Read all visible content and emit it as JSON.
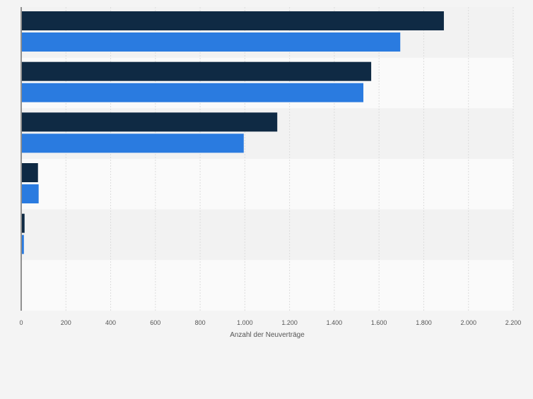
{
  "chart_data": {
    "type": "bar",
    "orientation": "horizontal",
    "categories": [
      "",
      "",
      "",
      "",
      "",
      ""
    ],
    "series": [
      {
        "color": "#0f2a44",
        "values": [
          1890,
          1565,
          1145,
          75,
          15,
          0
        ]
      },
      {
        "color": "#2a7be0",
        "values": [
          1695,
          1530,
          995,
          78,
          12,
          0
        ]
      }
    ],
    "xlabel": "Anzahl der Neuverträge",
    "xlim": [
      0,
      2200
    ],
    "x_ticks": [
      0,
      200,
      400,
      600,
      800,
      1000,
      1200,
      1400,
      1600,
      1800,
      2000,
      2200
    ],
    "x_tick_labels": [
      "0",
      "200",
      "400",
      "600",
      "800",
      "1.000",
      "1.200",
      "1.400",
      "1.600",
      "1.800",
      "2.000",
      "2.200"
    ],
    "grid": true,
    "legend": "none"
  }
}
